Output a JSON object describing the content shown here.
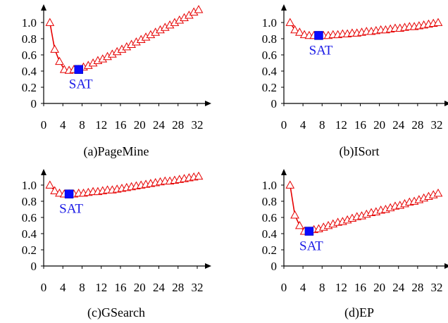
{
  "colors": {
    "series": "#e60000",
    "sat": "#0a0aff",
    "sat_text": "#1a1ae6"
  },
  "chart_data": [
    {
      "type": "line",
      "caption": "(a)PageMine",
      "xlim": [
        0,
        33
      ],
      "ylim": [
        0,
        1.2
      ],
      "xticks": [
        0,
        4,
        8,
        12,
        16,
        20,
        24,
        28,
        32
      ],
      "yticks": [
        0,
        0.2,
        0.4,
        0.6,
        0.8,
        1.0
      ],
      "ytick_labels": [
        "0",
        "0.2",
        "0.4",
        "0.6",
        "0.8",
        "1.0"
      ],
      "x": [
        1,
        2,
        3,
        4,
        5,
        6,
        7,
        8,
        9,
        10,
        11,
        12,
        13,
        14,
        15,
        16,
        17,
        18,
        19,
        20,
        21,
        22,
        23,
        24,
        25,
        26,
        27,
        28,
        29,
        30,
        31,
        32
      ],
      "y": [
        1.0,
        0.67,
        0.52,
        0.42,
        0.41,
        0.42,
        0.42,
        0.45,
        0.47,
        0.5,
        0.53,
        0.55,
        0.58,
        0.61,
        0.64,
        0.67,
        0.7,
        0.73,
        0.76,
        0.79,
        0.82,
        0.85,
        0.88,
        0.91,
        0.94,
        0.97,
        1.0,
        1.03,
        1.06,
        1.09,
        1.13,
        1.16
      ],
      "annotation": {
        "label": "SAT",
        "x": 7,
        "y": 0.42
      }
    },
    {
      "type": "line",
      "caption": "(b)ISort",
      "xlim": [
        0,
        33
      ],
      "ylim": [
        0,
        1.2
      ],
      "xticks": [
        0,
        4,
        8,
        12,
        16,
        20,
        24,
        28,
        32
      ],
      "yticks": [
        0,
        0.2,
        0.4,
        0.6,
        0.8,
        1.0
      ],
      "ytick_labels": [
        "0",
        "0.2",
        "0.4",
        "0.6",
        "0.8",
        "1.0"
      ],
      "x": [
        1,
        2,
        3,
        4,
        5,
        6,
        7,
        8,
        9,
        10,
        11,
        12,
        13,
        14,
        15,
        16,
        17,
        18,
        19,
        20,
        21,
        22,
        23,
        24,
        25,
        26,
        27,
        28,
        29,
        30,
        31,
        32
      ],
      "y": [
        1.0,
        0.91,
        0.88,
        0.85,
        0.84,
        0.84,
        0.84,
        0.84,
        0.84,
        0.85,
        0.85,
        0.86,
        0.86,
        0.87,
        0.87,
        0.88,
        0.89,
        0.89,
        0.9,
        0.91,
        0.91,
        0.92,
        0.93,
        0.93,
        0.94,
        0.95,
        0.95,
        0.96,
        0.97,
        0.98,
        0.99,
        1.0
      ],
      "annotation": {
        "label": "SAT",
        "x": 7,
        "y": 0.84
      }
    },
    {
      "type": "line",
      "caption": "(c)GSearch",
      "xlim": [
        0,
        33
      ],
      "ylim": [
        0,
        1.2
      ],
      "xticks": [
        0,
        4,
        8,
        12,
        16,
        20,
        24,
        28,
        32
      ],
      "yticks": [
        0,
        0.2,
        0.4,
        0.6,
        0.8,
        1.0
      ],
      "ytick_labels": [
        "0",
        "0.2",
        "0.4",
        "0.6",
        "0.8",
        "1.0"
      ],
      "x": [
        1,
        2,
        3,
        4,
        5,
        6,
        7,
        8,
        9,
        10,
        11,
        12,
        13,
        14,
        15,
        16,
        17,
        18,
        19,
        20,
        21,
        22,
        23,
        24,
        25,
        26,
        27,
        28,
        29,
        30,
        31,
        32
      ],
      "y": [
        1.0,
        0.93,
        0.9,
        0.89,
        0.89,
        0.89,
        0.9,
        0.9,
        0.91,
        0.92,
        0.92,
        0.93,
        0.94,
        0.94,
        0.95,
        0.96,
        0.97,
        0.98,
        0.99,
        1.0,
        1.01,
        1.02,
        1.03,
        1.04,
        1.05,
        1.05,
        1.06,
        1.07,
        1.08,
        1.09,
        1.1,
        1.11
      ],
      "annotation": {
        "label": "SAT",
        "x": 5,
        "y": 0.89
      }
    },
    {
      "type": "line",
      "caption": "(d)EP",
      "xlim": [
        0,
        33
      ],
      "ylim": [
        0,
        1.2
      ],
      "xticks": [
        0,
        4,
        8,
        12,
        16,
        20,
        24,
        28,
        32
      ],
      "yticks": [
        0,
        0.2,
        0.4,
        0.6,
        0.8,
        1.0
      ],
      "ytick_labels": [
        "0",
        "0.2",
        "0.4",
        "0.6",
        "0.8",
        "1.0"
      ],
      "x": [
        1,
        2,
        3,
        4,
        5,
        6,
        7,
        8,
        9,
        10,
        11,
        12,
        13,
        14,
        15,
        16,
        17,
        18,
        19,
        20,
        21,
        22,
        23,
        24,
        25,
        26,
        27,
        28,
        29,
        30,
        31,
        32
      ],
      "y": [
        1.0,
        0.63,
        0.5,
        0.43,
        0.43,
        0.45,
        0.46,
        0.48,
        0.5,
        0.52,
        0.54,
        0.55,
        0.57,
        0.59,
        0.61,
        0.62,
        0.64,
        0.66,
        0.67,
        0.69,
        0.7,
        0.72,
        0.74,
        0.75,
        0.77,
        0.79,
        0.8,
        0.82,
        0.84,
        0.86,
        0.88,
        0.9
      ],
      "annotation": {
        "label": "SAT",
        "x": 5,
        "y": 0.43
      }
    }
  ]
}
